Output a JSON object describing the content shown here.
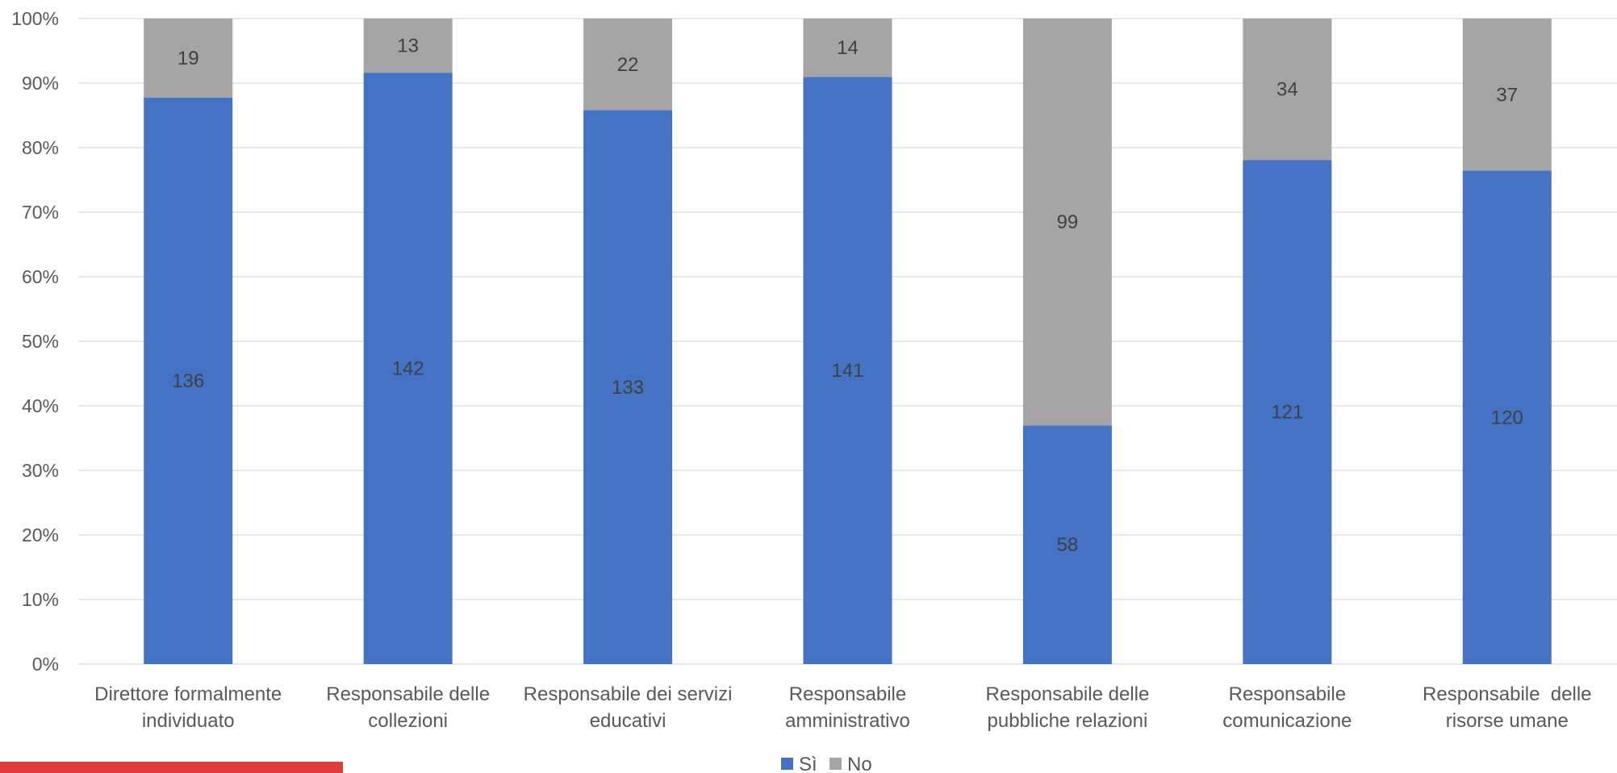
{
  "chart_data": {
    "type": "bar",
    "stacked": "percent",
    "title": "",
    "xlabel": "",
    "ylabel": "",
    "ylim": [
      0,
      100
    ],
    "y_ticks": [
      "0%",
      "10%",
      "20%",
      "30%",
      "40%",
      "50%",
      "60%",
      "70%",
      "80%",
      "90%",
      "100%"
    ],
    "categories": [
      [
        "Direttore formalmente",
        "individuato"
      ],
      [
        "Responsabile delle",
        "collezioni"
      ],
      [
        "Responsabile dei servizi",
        "educativi"
      ],
      [
        "Responsabile",
        "amministrativo"
      ],
      [
        "Responsabile delle",
        "pubbliche relazioni"
      ],
      [
        "Responsabile",
        "comunicazione"
      ],
      [
        "Responsabile  delle",
        "risorse umane"
      ]
    ],
    "series": [
      {
        "name": "Sì",
        "color": "#4472c4",
        "values": [
          136,
          142,
          133,
          141,
          58,
          121,
          120
        ]
      },
      {
        "name": "No",
        "color": "#a5a5a5",
        "values": [
          19,
          13,
          22,
          14,
          99,
          34,
          37
        ]
      }
    ],
    "grid": true,
    "legend": "bottom-center"
  }
}
